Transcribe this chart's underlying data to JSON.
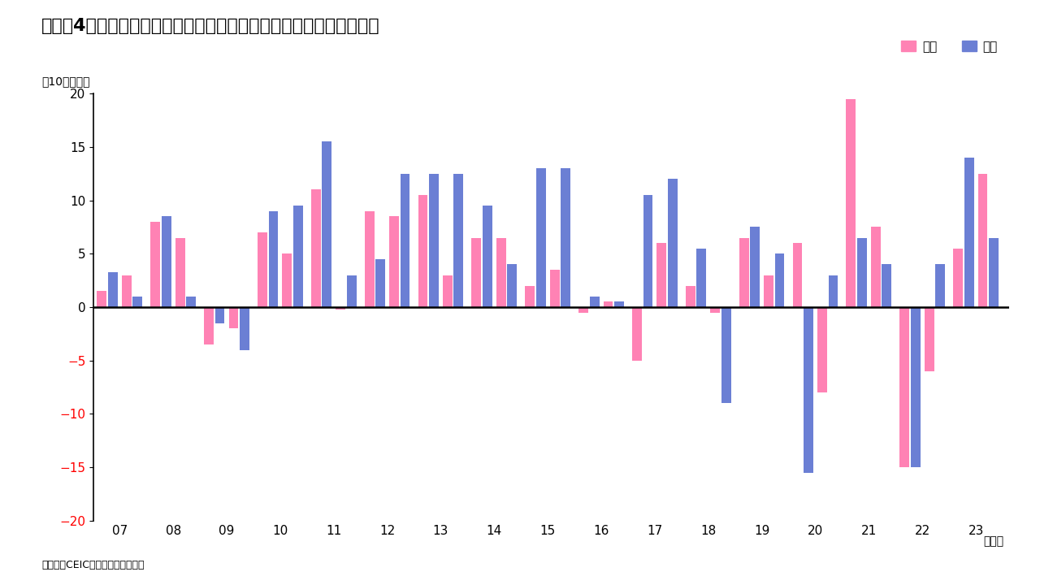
{
  "title": "（図表4）　外国機関投資家によるインド市場へのネット資金フロー",
  "ylabel": "（10億ドル）",
  "source": "（出所）CEICよりインベスコ作成",
  "legend_equity": "株式",
  "legend_bond": "債券",
  "year_label": "（年）",
  "equity_color": "#FF82B4",
  "bond_color": "#6B7FD4",
  "ylim": [
    -20,
    20
  ],
  "yticks": [
    -20,
    -15,
    -10,
    -5,
    0,
    5,
    10,
    15,
    20
  ],
  "background_color": "#FFFFFF",
  "equity_vals": [
    1.5,
    3.0,
    8.0,
    6.5,
    -3.5,
    -2.0,
    7.0,
    5.0,
    11.0,
    -0.2,
    9.0,
    8.5,
    10.5,
    3.0,
    6.5,
    6.5,
    2.0,
    3.5,
    -0.5,
    0.5,
    -5.0,
    6.0,
    2.0,
    -0.5,
    6.5,
    3.0,
    6.0,
    -8.0,
    19.5,
    7.5,
    -15.0,
    -6.0,
    5.5,
    12.5
  ],
  "bond_vals": [
    3.3,
    1.0,
    8.5,
    1.0,
    -1.5,
    -4.0,
    9.0,
    9.5,
    15.5,
    3.0,
    4.5,
    12.5,
    12.5,
    12.5,
    9.5,
    4.0,
    13.0,
    13.0,
    1.0,
    0.5,
    10.5,
    12.0,
    5.5,
    -9.0,
    7.5,
    5.0,
    -15.5,
    3.0,
    6.5,
    4.0,
    -15.0,
    4.0,
    14.0,
    6.5
  ],
  "year_labels": [
    "07",
    "08",
    "09",
    "10",
    "11",
    "12",
    "13",
    "14",
    "15",
    "16",
    "17",
    "18",
    "19",
    "20",
    "21",
    "22",
    "23"
  ]
}
